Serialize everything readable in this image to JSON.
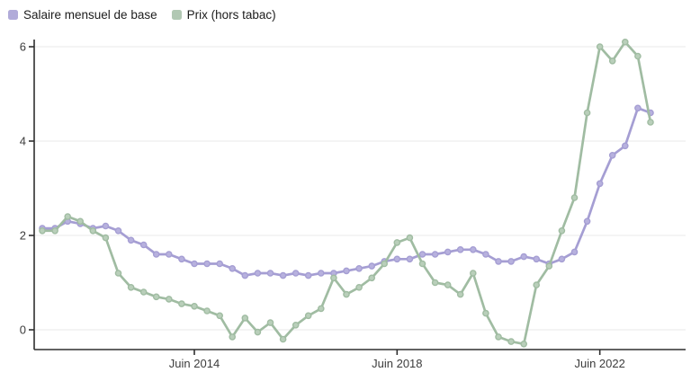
{
  "legend": {
    "items": [
      {
        "label": "Salaire mensuel de base",
        "swatch_color": "#b1abd9"
      },
      {
        "label": "Prix (hors tabac)",
        "swatch_color": "#b1c8b3"
      }
    ]
  },
  "axes": {
    "y_tick_labels": [
      "0",
      "2",
      "4",
      "6"
    ],
    "y_tick_values": [
      0,
      2,
      4,
      6
    ],
    "x_tick_labels": [
      "Juin 2014",
      "Juin 2018",
      "Juin 2022"
    ],
    "x_tick_indices": [
      12,
      28,
      44
    ],
    "axis_color": "#2e2e2e",
    "grid_color": "#ededed",
    "tick_label_color": "#3c3c3c"
  },
  "chart_data": {
    "type": "line",
    "x_unit": "trimestre",
    "categories": [
      "2011-T2",
      "2011-T3",
      "2011-T4",
      "2012-T1",
      "2012-T2",
      "2012-T3",
      "2012-T4",
      "2013-T1",
      "2013-T2",
      "2013-T3",
      "2013-T4",
      "2014-T1",
      "2014-T2",
      "2014-T3",
      "2014-T4",
      "2015-T1",
      "2015-T2",
      "2015-T3",
      "2015-T4",
      "2016-T1",
      "2016-T2",
      "2016-T3",
      "2016-T4",
      "2017-T1",
      "2017-T2",
      "2017-T3",
      "2017-T4",
      "2018-T1",
      "2018-T2",
      "2018-T3",
      "2018-T4",
      "2019-T1",
      "2019-T2",
      "2019-T3",
      "2019-T4",
      "2020-T1",
      "2020-T2",
      "2020-T3",
      "2020-T4",
      "2021-T1",
      "2021-T2",
      "2021-T3",
      "2021-T4",
      "2022-T1",
      "2022-T2",
      "2022-T3",
      "2022-T4",
      "2023-T1",
      "2023-T2"
    ],
    "series": [
      {
        "name": "Salaire mensuel de base",
        "line_color": "#a59ed3",
        "marker_fill": "#b7b1de",
        "values": [
          2.15,
          2.15,
          2.3,
          2.25,
          2.15,
          2.2,
          2.1,
          1.9,
          1.8,
          1.6,
          1.6,
          1.5,
          1.4,
          1.4,
          1.4,
          1.3,
          1.15,
          1.2,
          1.2,
          1.15,
          1.2,
          1.15,
          1.2,
          1.2,
          1.25,
          1.3,
          1.35,
          1.45,
          1.5,
          1.5,
          1.6,
          1.6,
          1.65,
          1.7,
          1.7,
          1.6,
          1.45,
          1.45,
          1.55,
          1.5,
          1.4,
          1.5,
          1.65,
          2.3,
          3.1,
          3.7,
          3.9,
          4.7,
          4.6
        ]
      },
      {
        "name": "Prix (hors tabac)",
        "line_color": "#a0bca2",
        "marker_fill": "#b9cfba",
        "values": [
          2.1,
          2.1,
          2.4,
          2.3,
          2.1,
          1.95,
          1.2,
          0.9,
          0.8,
          0.7,
          0.65,
          0.55,
          0.5,
          0.4,
          0.3,
          -0.15,
          0.25,
          -0.05,
          0.15,
          -0.2,
          0.1,
          0.3,
          0.45,
          1.1,
          0.75,
          0.9,
          1.1,
          1.4,
          1.85,
          1.95,
          1.4,
          1.0,
          0.95,
          0.75,
          1.2,
          0.35,
          -0.15,
          -0.25,
          -0.3,
          0.95,
          1.35,
          2.1,
          2.8,
          4.6,
          6.0,
          5.7,
          6.1,
          5.8,
          4.4
        ]
      }
    ],
    "title": "",
    "xlabel": "",
    "ylabel": "",
    "ylim": [
      -0.5,
      6.3
    ],
    "grid": "horizontal",
    "legend_position": "top-left"
  }
}
